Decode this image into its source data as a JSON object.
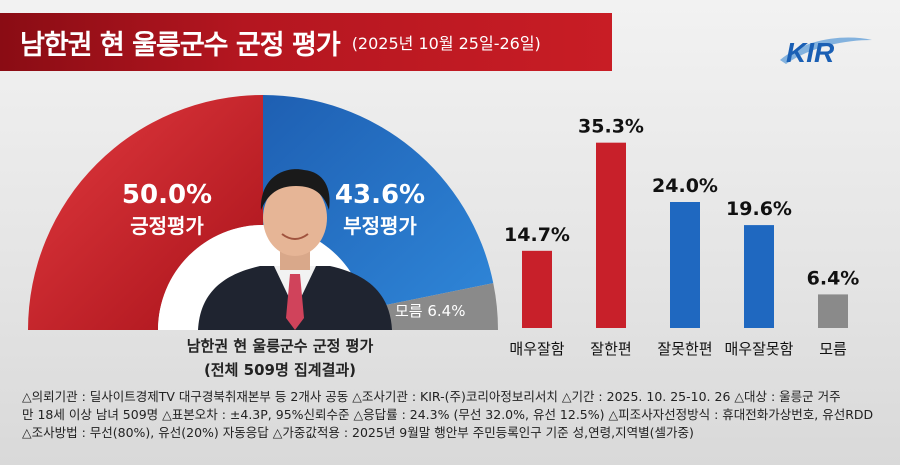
{
  "header": {
    "title": "남한권 현 울릉군수 군정 평가",
    "date": "(2025년 10월 25일-26일)",
    "logo_text": "KIR"
  },
  "colors": {
    "positive": "#c8202a",
    "negative": "#1f68c0",
    "unknown": "#8a8a8a",
    "banner": "#b41620"
  },
  "chart_data": [
    {
      "type": "pie",
      "categories": [
        "긍정평가",
        "부정평가",
        "모름"
      ],
      "values": [
        50.0,
        43.6,
        6.4
      ],
      "value_labels": [
        "50.0%",
        "43.6%",
        "6.4%"
      ],
      "unknown_label": "모름 6.4%",
      "caption_line1": "남한권 현 울릉군수 군정 평가",
      "caption_line2": "(전체 509명 집계결과)"
    },
    {
      "type": "bar",
      "categories": [
        "매우잘함",
        "잘한편",
        "잘못한편",
        "매우잘못함",
        "모름"
      ],
      "values": [
        14.7,
        35.3,
        24.0,
        19.6,
        6.4
      ],
      "value_labels": [
        "14.7%",
        "35.3%",
        "24.0%",
        "19.6%",
        "6.4%"
      ],
      "colors": [
        "#c8202a",
        "#c8202a",
        "#1f68c0",
        "#1f68c0",
        "#8a8a8a"
      ],
      "ylim": [
        0,
        40
      ]
    }
  ],
  "notes": [
    "△의뢰기관 : 딜사이트경제TV 대구경북취재본부 등 2개사 공동   △조사기관 : KIR-(주)코리아정보리서치   △기간 : 2025. 10. 25-10. 26   △대상 : 울릉군 거주",
    "만 18세 이상 남녀 509명   △표본오차 : ±4.3P, 95%신뢰수준   △응답률 : 24.3% (무선 32.0%, 유선 12.5%)   △피조사자선정방식 : 휴대전화가상번호, 유선RDD",
    "△조사방법 : 무선(80%), 유선(20%) 자동응답   △가중값적용 : 2025년 9월말 행안부 주민등록인구 기준 성,연령,지역별(셀가중)"
  ]
}
